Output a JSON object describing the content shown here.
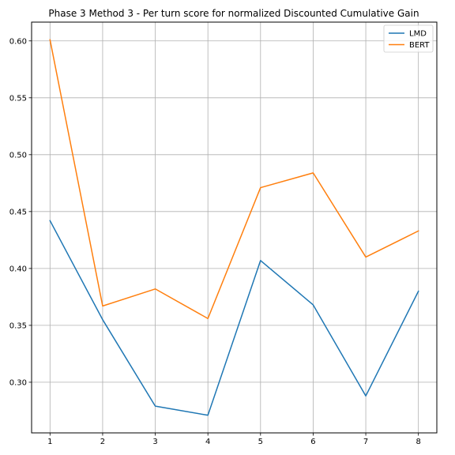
{
  "chart_data": {
    "type": "line",
    "title": "Phase 3 Method 3 - Per turn score for normalized Discounted Cumulative Gain",
    "xlabel": "",
    "ylabel": "",
    "x": [
      1,
      2,
      3,
      4,
      5,
      6,
      7,
      8
    ],
    "xticks": [
      "1",
      "2",
      "3",
      "4",
      "5",
      "6",
      "7",
      "8"
    ],
    "xlim": [
      0.65,
      8.35
    ],
    "ylim": [
      0.2555,
      0.6165
    ],
    "yticks": [
      "0.30",
      "0.35",
      "0.40",
      "0.45",
      "0.50",
      "0.55",
      "0.60"
    ],
    "grid": true,
    "legend_position": "top-right",
    "series": [
      {
        "name": "LMD",
        "color": "#1f77b4",
        "values": [
          0.442,
          0.355,
          0.279,
          0.271,
          0.407,
          0.368,
          0.288,
          0.38
        ]
      },
      {
        "name": "BERT",
        "color": "#ff7f0e",
        "values": [
          0.601,
          0.367,
          0.382,
          0.356,
          0.471,
          0.484,
          0.41,
          0.433
        ]
      }
    ]
  }
}
